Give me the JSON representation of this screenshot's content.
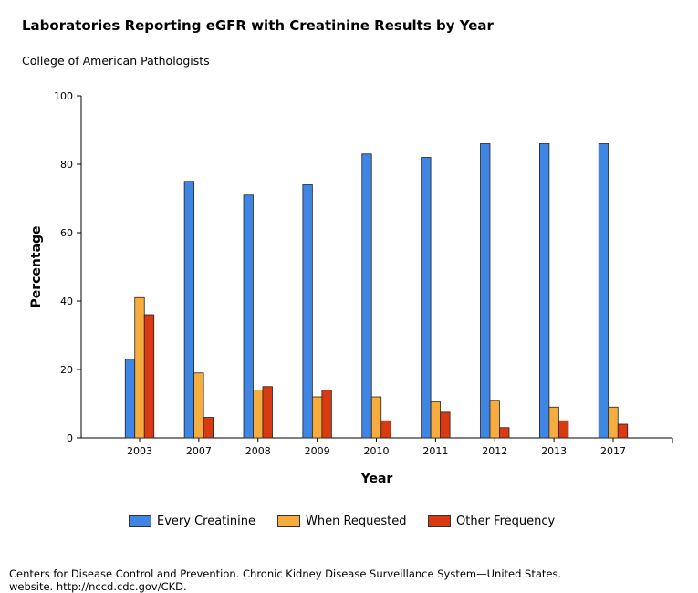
{
  "header": {
    "title": "Laboratories Reporting eGFR with Creatinine Results by Year",
    "subtitle": "College of American Pathologists"
  },
  "footer": {
    "line1": "Centers for Disease Control and Prevention. Chronic Kidney Disease Surveillance System—United States.",
    "line2": "website. http://nccd.cdc.gov/CKD."
  },
  "chart_data": {
    "type": "bar",
    "title": "Laboratories Reporting eGFR with Creatinine Results by Year",
    "subtitle": "College of American Pathologists",
    "xlabel": "Year",
    "ylabel": "Percentage",
    "ylim": [
      0,
      100
    ],
    "yticks": [
      0,
      20,
      40,
      60,
      80,
      100
    ],
    "grid": false,
    "legend_position": "bottom",
    "categories": [
      "2003",
      "2007",
      "2008",
      "2009",
      "2010",
      "2011",
      "2012",
      "2013",
      "2017"
    ],
    "series": [
      {
        "name": "Every Creatinine",
        "color": "#3f86e4",
        "values": [
          23,
          75,
          71,
          74,
          83,
          82,
          86,
          86,
          86
        ]
      },
      {
        "name": "When Requested",
        "color": "#f6ad3e",
        "values": [
          41,
          19,
          14,
          12,
          12,
          10.5,
          11,
          9,
          9
        ]
      },
      {
        "name": "Other Frequency",
        "color": "#da3a12",
        "values": [
          36,
          6,
          15,
          14,
          5,
          7.5,
          3,
          5,
          4
        ]
      }
    ]
  }
}
